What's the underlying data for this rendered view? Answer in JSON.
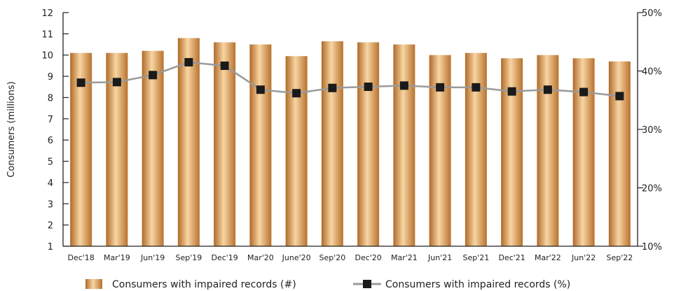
{
  "chart_data": {
    "type": "bar",
    "title": "",
    "categories": [
      "Dec'18",
      "Mar'19",
      "Jun'19",
      "Sep'19",
      "Dec'19",
      "Mar'20",
      "June'20",
      "Sep'20",
      "Dec'20",
      "Mar'21",
      "Jun'21",
      "Sep'21",
      "Dec'21",
      "Mar'22",
      "Jun'22",
      "Sep'22"
    ],
    "series": [
      {
        "name": "Consumers with impaired records (#)",
        "type": "bar",
        "axis": "left",
        "values": [
          10.1,
          10.1,
          10.2,
          10.8,
          10.6,
          10.5,
          9.95,
          10.65,
          10.6,
          10.5,
          10.0,
          10.1,
          9.85,
          10.0,
          9.85,
          9.7
        ]
      },
      {
        "name": "Consumers with impaired records (%)",
        "type": "line",
        "axis": "right",
        "values": [
          38.0,
          38.1,
          39.3,
          41.5,
          40.9,
          36.8,
          36.2,
          37.1,
          37.3,
          37.5,
          37.2,
          37.2,
          36.5,
          36.8,
          36.4,
          35.7
        ]
      }
    ],
    "ylabel": "Consumers (millions)",
    "y_left": {
      "min": 1,
      "max": 12,
      "ticks": [
        1,
        2,
        3,
        4,
        5,
        6,
        7,
        8,
        9,
        10,
        11,
        12
      ]
    },
    "y_right": {
      "min": 10,
      "max": 50,
      "ticks": [
        10,
        20,
        30,
        40,
        50
      ],
      "tick_labels": [
        "10%",
        "20%",
        "30%",
        "40%",
        "50%"
      ]
    },
    "grid": false,
    "legend_position": "bottom",
    "colors": {
      "bar_dark": "#b06a28",
      "bar_light": "#f8d5a3",
      "line": "#9a9a9a",
      "marker": "#1a1a1a",
      "axis": "#222222"
    }
  }
}
